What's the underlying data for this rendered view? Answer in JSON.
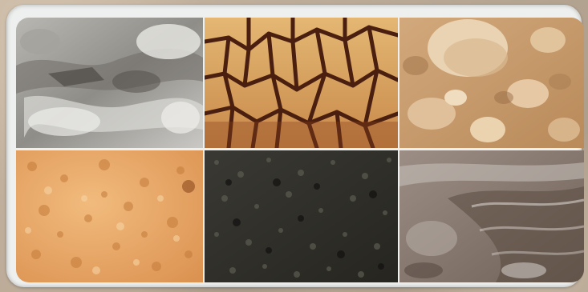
{
  "tiles": [
    {
      "id": "gravel-soil",
      "base": "#9a9893",
      "accent": "#e3e3e0",
      "shadow": "#55524d"
    },
    {
      "id": "cracked-clay-soil",
      "base": "#d8a55e",
      "accent": "#f1cf8f",
      "shadow": "#5a2a14"
    },
    {
      "id": "rocky-sandy-soil",
      "base": "#c79a6b",
      "accent": "#e8c9a0",
      "shadow": "#8a6240"
    },
    {
      "id": "sandy-soil",
      "base": "#e6a565",
      "accent": "#f4c58d",
      "shadow": "#c0803f"
    },
    {
      "id": "dark-loam-soil",
      "base": "#2f2e29",
      "accent": "#5b5a50",
      "shadow": "#141311"
    },
    {
      "id": "wet-mud-soil",
      "base": "#8a7b70",
      "accent": "#c8c2bd",
      "shadow": "#4c403a"
    }
  ]
}
